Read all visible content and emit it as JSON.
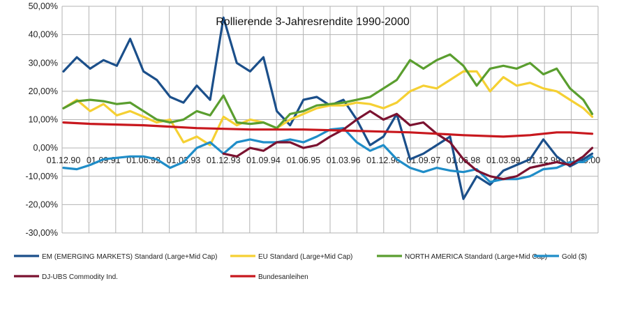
{
  "chart_data": {
    "type": "line",
    "title": "Rollierende 3-Jahresrendite 1990-2000",
    "xlabel": "",
    "ylabel": "",
    "ylim": [
      -0.3,
      0.5
    ],
    "y_tick_labels": [
      "50,00%",
      "40,00%",
      "30,00%",
      "20,00%",
      "10,00%",
      "0,00%",
      "-10,00%",
      "-20,00%",
      "-30,00%"
    ],
    "x_tick_labels": [
      "01.12.90",
      "01.09.91",
      "01.06.92",
      "01.03.93",
      "01.12.93",
      "01.09.94",
      "01.06.95",
      "01.03.96",
      "01.12.96",
      "01.09.97",
      "01.06.98",
      "01.03.99",
      "01.12.99",
      "01.09.00"
    ],
    "grid": true,
    "legend_position": "bottom",
    "series": [
      {
        "name": "EM (EMERGING MARKETS) Standard (Large+Mid Cap)",
        "color": "#1b4f8a",
        "points": [
          [
            "1990-12",
            0.27
          ],
          [
            "1991-03",
            0.32
          ],
          [
            "1991-06",
            0.28
          ],
          [
            "1991-09",
            0.31
          ],
          [
            "1991-12",
            0.29
          ],
          [
            "1992-03",
            0.385
          ],
          [
            "1992-06",
            0.27
          ],
          [
            "1992-09",
            0.24
          ],
          [
            "1992-12",
            0.18
          ],
          [
            "1993-03",
            0.16
          ],
          [
            "1993-06",
            0.22
          ],
          [
            "1993-09",
            0.17
          ],
          [
            "1993-12",
            0.46
          ],
          [
            "1994-03",
            0.3
          ],
          [
            "1994-06",
            0.27
          ],
          [
            "1994-09",
            0.32
          ],
          [
            "1994-12",
            0.13
          ],
          [
            "1995-03",
            0.08
          ],
          [
            "1995-06",
            0.17
          ],
          [
            "1995-09",
            0.18
          ],
          [
            "1995-12",
            0.15
          ],
          [
            "1996-03",
            0.17
          ],
          [
            "1996-06",
            0.1
          ],
          [
            "1996-09",
            0.01
          ],
          [
            "1996-12",
            0.04
          ],
          [
            "1997-03",
            0.12
          ],
          [
            "1997-06",
            -0.04
          ],
          [
            "1997-09",
            -0.02
          ],
          [
            "1997-12",
            0.01
          ],
          [
            "1998-03",
            0.04
          ],
          [
            "1998-06",
            -0.18
          ],
          [
            "1998-09",
            -0.1
          ],
          [
            "1998-12",
            -0.13
          ],
          [
            "1999-03",
            -0.08
          ],
          [
            "1999-06",
            -0.06
          ],
          [
            "1999-09",
            -0.04
          ],
          [
            "1999-12",
            0.03
          ],
          [
            "2000-03",
            -0.03
          ],
          [
            "2000-06",
            -0.065
          ],
          [
            "2000-09",
            -0.04
          ],
          [
            "2000-11",
            -0.02
          ]
        ]
      },
      {
        "name": "EU Standard (Large+Mid Cap)",
        "color": "#f5d033",
        "points": [
          [
            "1990-12",
            0.14
          ],
          [
            "1991-03",
            0.17
          ],
          [
            "1991-06",
            0.13
          ],
          [
            "1991-09",
            0.155
          ],
          [
            "1991-12",
            0.115
          ],
          [
            "1992-03",
            0.13
          ],
          [
            "1992-06",
            0.11
          ],
          [
            "1992-09",
            0.09
          ],
          [
            "1992-12",
            0.1
          ],
          [
            "1993-03",
            0.02
          ],
          [
            "1993-06",
            0.04
          ],
          [
            "1993-09",
            0.01
          ],
          [
            "1993-12",
            0.11
          ],
          [
            "1994-03",
            0.08
          ],
          [
            "1994-06",
            0.1
          ],
          [
            "1994-09",
            0.09
          ],
          [
            "1994-12",
            0.07
          ],
          [
            "1995-03",
            0.1
          ],
          [
            "1995-06",
            0.12
          ],
          [
            "1995-09",
            0.14
          ],
          [
            "1995-12",
            0.15
          ],
          [
            "1996-03",
            0.15
          ],
          [
            "1996-06",
            0.16
          ],
          [
            "1996-09",
            0.155
          ],
          [
            "1996-12",
            0.14
          ],
          [
            "1997-03",
            0.16
          ],
          [
            "1997-06",
            0.2
          ],
          [
            "1997-09",
            0.22
          ],
          [
            "1997-12",
            0.21
          ],
          [
            "1998-03",
            0.24
          ],
          [
            "1998-06",
            0.27
          ],
          [
            "1998-09",
            0.27
          ],
          [
            "1998-12",
            0.2
          ],
          [
            "1999-03",
            0.25
          ],
          [
            "1999-06",
            0.22
          ],
          [
            "1999-09",
            0.23
          ],
          [
            "1999-12",
            0.21
          ],
          [
            "2000-03",
            0.2
          ],
          [
            "2000-06",
            0.17
          ],
          [
            "2000-09",
            0.14
          ],
          [
            "2000-11",
            0.11
          ]
        ]
      },
      {
        "name": "NORTH AMERICA Standard (Large+Mid Cap)",
        "color": "#5a9e2f",
        "points": [
          [
            "1990-12",
            0.14
          ],
          [
            "1991-03",
            0.165
          ],
          [
            "1991-06",
            0.17
          ],
          [
            "1991-09",
            0.165
          ],
          [
            "1991-12",
            0.155
          ],
          [
            "1992-03",
            0.16
          ],
          [
            "1992-06",
            0.13
          ],
          [
            "1992-09",
            0.1
          ],
          [
            "1992-12",
            0.09
          ],
          [
            "1993-03",
            0.1
          ],
          [
            "1993-06",
            0.13
          ],
          [
            "1993-09",
            0.115
          ],
          [
            "1993-12",
            0.185
          ],
          [
            "1994-03",
            0.09
          ],
          [
            "1994-06",
            0.085
          ],
          [
            "1994-09",
            0.09
          ],
          [
            "1994-12",
            0.07
          ],
          [
            "1995-03",
            0.12
          ],
          [
            "1995-06",
            0.13
          ],
          [
            "1995-09",
            0.15
          ],
          [
            "1995-12",
            0.155
          ],
          [
            "1996-03",
            0.16
          ],
          [
            "1996-06",
            0.17
          ],
          [
            "1996-09",
            0.18
          ],
          [
            "1996-12",
            0.21
          ],
          [
            "1997-03",
            0.24
          ],
          [
            "1997-06",
            0.31
          ],
          [
            "1997-09",
            0.28
          ],
          [
            "1997-12",
            0.31
          ],
          [
            "1998-03",
            0.33
          ],
          [
            "1998-06",
            0.29
          ],
          [
            "1998-09",
            0.22
          ],
          [
            "1998-12",
            0.28
          ],
          [
            "1999-03",
            0.29
          ],
          [
            "1999-06",
            0.28
          ],
          [
            "1999-09",
            0.3
          ],
          [
            "1999-12",
            0.26
          ],
          [
            "2000-03",
            0.28
          ],
          [
            "2000-06",
            0.21
          ],
          [
            "2000-09",
            0.17
          ],
          [
            "2000-11",
            0.12
          ]
        ]
      },
      {
        "name": "Gold ($)",
        "color": "#1f8dc8",
        "points": [
          [
            "1990-12",
            -0.07
          ],
          [
            "1991-03",
            -0.075
          ],
          [
            "1991-06",
            -0.06
          ],
          [
            "1991-09",
            -0.04
          ],
          [
            "1991-12",
            -0.035
          ],
          [
            "1992-03",
            -0.03
          ],
          [
            "1992-06",
            -0.03
          ],
          [
            "1992-09",
            -0.04
          ],
          [
            "1992-12",
            -0.07
          ],
          [
            "1993-03",
            -0.05
          ],
          [
            "1993-06",
            0.0
          ],
          [
            "1993-09",
            0.02
          ],
          [
            "1993-12",
            -0.02
          ],
          [
            "1994-03",
            0.02
          ],
          [
            "1994-06",
            0.03
          ],
          [
            "1994-09",
            0.02
          ],
          [
            "1994-12",
            0.02
          ],
          [
            "1995-03",
            0.03
          ],
          [
            "1995-06",
            0.02
          ],
          [
            "1995-09",
            0.04
          ],
          [
            "1995-12",
            0.065
          ],
          [
            "1996-03",
            0.07
          ],
          [
            "1996-06",
            0.02
          ],
          [
            "1996-09",
            -0.01
          ],
          [
            "1996-12",
            0.01
          ],
          [
            "1997-03",
            -0.04
          ],
          [
            "1997-06",
            -0.07
          ],
          [
            "1997-09",
            -0.085
          ],
          [
            "1997-12",
            -0.07
          ],
          [
            "1998-03",
            -0.08
          ],
          [
            "1998-06",
            -0.085
          ],
          [
            "1998-09",
            -0.075
          ],
          [
            "1998-12",
            -0.12
          ],
          [
            "1999-03",
            -0.11
          ],
          [
            "1999-06",
            -0.11
          ],
          [
            "1999-09",
            -0.1
          ],
          [
            "1999-12",
            -0.075
          ],
          [
            "2000-03",
            -0.07
          ],
          [
            "2000-06",
            -0.05
          ],
          [
            "2000-09",
            -0.05
          ],
          [
            "2000-11",
            -0.03
          ]
        ]
      },
      {
        "name": "DJ-UBS Commodity Ind.",
        "color": "#7b1230",
        "points": [
          [
            "1993-12",
            -0.02
          ],
          [
            "1994-03",
            -0.03
          ],
          [
            "1994-06",
            0.0
          ],
          [
            "1994-09",
            -0.01
          ],
          [
            "1994-12",
            0.02
          ],
          [
            "1995-03",
            0.02
          ],
          [
            "1995-06",
            0.0
          ],
          [
            "1995-09",
            0.01
          ],
          [
            "1995-12",
            0.04
          ],
          [
            "1996-03",
            0.065
          ],
          [
            "1996-06",
            0.1
          ],
          [
            "1996-09",
            0.13
          ],
          [
            "1996-12",
            0.1
          ],
          [
            "1997-03",
            0.12
          ],
          [
            "1997-06",
            0.08
          ],
          [
            "1997-09",
            0.09
          ],
          [
            "1997-12",
            0.05
          ],
          [
            "1998-03",
            0.02
          ],
          [
            "1998-06",
            -0.04
          ],
          [
            "1998-09",
            -0.08
          ],
          [
            "1998-12",
            -0.1
          ],
          [
            "1999-03",
            -0.11
          ],
          [
            "1999-06",
            -0.1
          ],
          [
            "1999-09",
            -0.07
          ],
          [
            "1999-12",
            -0.06
          ],
          [
            "2000-03",
            -0.05
          ],
          [
            "2000-06",
            -0.06
          ],
          [
            "2000-09",
            -0.03
          ],
          [
            "2000-11",
            0.0
          ]
        ]
      },
      {
        "name": "Bundesanleihen",
        "color": "#c8181e",
        "points": [
          [
            "1990-12",
            0.09
          ],
          [
            "1991-06",
            0.085
          ],
          [
            "1992-06",
            0.08
          ],
          [
            "1993-06",
            0.07
          ],
          [
            "1994-06",
            0.065
          ],
          [
            "1995-06",
            0.065
          ],
          [
            "1996-06",
            0.06
          ],
          [
            "1997-06",
            0.055
          ],
          [
            "1998-06",
            0.045
          ],
          [
            "1999-03",
            0.04
          ],
          [
            "1999-09",
            0.045
          ],
          [
            "2000-03",
            0.055
          ],
          [
            "2000-06",
            0.055
          ],
          [
            "2000-11",
            0.05
          ]
        ]
      }
    ]
  }
}
